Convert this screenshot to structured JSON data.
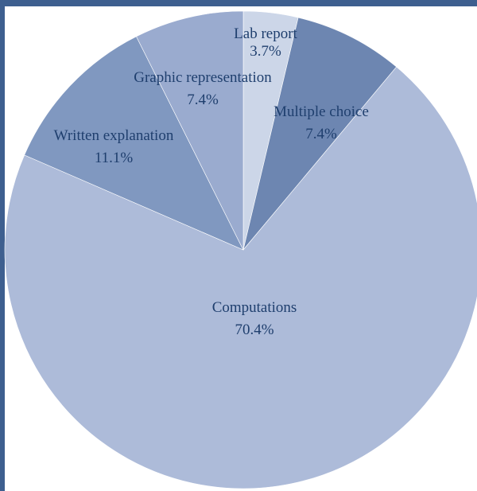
{
  "chart_data": {
    "type": "pie",
    "title": "",
    "start_angle_deg": 0,
    "direction": "clockwise",
    "legend": "none",
    "slices": [
      {
        "label": "Lab report",
        "percent_label": "3.7%",
        "value": 3.7,
        "color": "#ccd6e8"
      },
      {
        "label": "Multiple choice",
        "percent_label": "7.4%",
        "value": 7.4,
        "color": "#6d86b1"
      },
      {
        "label": "Computations",
        "percent_label": "70.4%",
        "value": 70.4,
        "color": "#adbbd9"
      },
      {
        "label": "Written explanation",
        "percent_label": "11.1%",
        "value": 11.1,
        "color": "#8098c0"
      },
      {
        "label": "Graphic representation",
        "percent_label": "7.4%",
        "value": 7.4,
        "color": "#9aabcf"
      }
    ]
  },
  "frame": {
    "border_color": "#3e5f8f",
    "label_color": "#1f3f6e"
  }
}
